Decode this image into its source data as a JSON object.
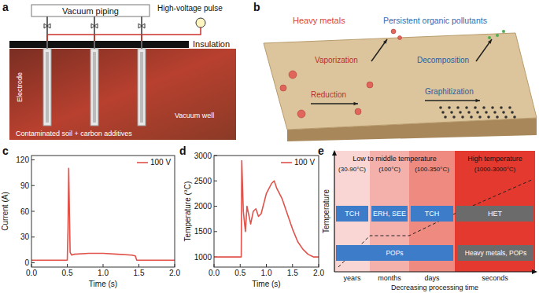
{
  "diagram_a": {
    "letter": "a",
    "vacuum_piping": "Vacuum piping",
    "pulse": "High-voltage pulse",
    "insulation": "Insulation",
    "electrode": "Electrode",
    "vacuum_well": "Vacuum well",
    "soil": "Contaminated soil + carbon additives"
  },
  "diagram_b": {
    "letter": "b",
    "heavy_metals": "Heavy metals",
    "pops": "Persistent organic pollutants",
    "processes": [
      "Vaporization",
      "Reduction",
      "Decomposition",
      "Graphitization"
    ]
  },
  "chart_data": [
    {
      "letter": "c",
      "type": "line",
      "x_label": "Time (s)",
      "y_label": "Current (A)",
      "x": [
        0,
        0.2,
        0.4,
        0.5,
        0.51,
        0.52,
        0.53,
        0.54,
        0.56,
        0.6,
        0.8,
        1.0,
        1.2,
        1.4,
        1.45,
        1.47,
        1.6,
        1.8,
        2.0
      ],
      "series": [
        {
          "name": "100 V",
          "color": "#e0524a",
          "values": [
            3,
            3,
            3,
            3,
            40,
            110,
            60,
            12,
            9,
            10,
            11,
            11,
            10,
            9,
            8,
            3,
            3,
            3,
            3
          ]
        }
      ],
      "xlim": [
        0,
        2
      ],
      "xticks": [
        {
          "value": 0,
          "label": "0.0"
        },
        {
          "value": 0.5,
          "label": "0.5"
        },
        {
          "value": 1,
          "label": "1.0"
        },
        {
          "value": 1.5,
          "label": "1.5"
        },
        {
          "value": 2,
          "label": "2.0"
        }
      ],
      "ylim": [
        -5,
        125
      ],
      "yticks": [
        0,
        30,
        60,
        90,
        120
      ],
      "grid": false,
      "legend": "upper right"
    },
    {
      "letter": "d",
      "type": "line",
      "x_label": "Time (s)",
      "y_label": "Temperature (°C)",
      "x": [
        0,
        0.3,
        0.5,
        0.52,
        0.53,
        0.56,
        0.6,
        0.63,
        0.67,
        0.7,
        0.75,
        0.8,
        0.85,
        0.9,
        1.0,
        1.1,
        1.15,
        1.2,
        1.3,
        1.4,
        1.5,
        1.6,
        1.7,
        1.8,
        1.9,
        2.0
      ],
      "series": [
        {
          "name": "100 V",
          "color": "#e0524a",
          "values": [
            1000,
            1000,
            1000,
            1000,
            2900,
            1900,
            1500,
            2000,
            1800,
            1650,
            1900,
            1950,
            1800,
            1850,
            2250,
            2450,
            2500,
            2350,
            2150,
            1850,
            1550,
            1300,
            1150,
            1050,
            1000,
            1000
          ]
        }
      ],
      "xlim": [
        0,
        2
      ],
      "xticks": [
        {
          "value": 0,
          "label": "0.0"
        },
        {
          "value": 0.5,
          "label": "0.5"
        },
        {
          "value": 1,
          "label": "1.0"
        },
        {
          "value": 1.5,
          "label": "1.5"
        },
        {
          "value": 2,
          "label": "2.0"
        }
      ],
      "ylim": [
        800,
        3000
      ],
      "yticks": [
        1000,
        1500,
        2000,
        2500,
        3000
      ],
      "grid": false,
      "legend": "upper right"
    }
  ],
  "diagram_e": {
    "letter": "e",
    "y_label": "Temperature",
    "x_label": "Decreasing processing time",
    "header": {
      "low": "Low to middle temperature",
      "high": "High temperature"
    },
    "ranges": [
      "(30-90°C)",
      "(100°C)",
      "(100-350°C)",
      "(1000-3000°C)"
    ],
    "times": [
      "years",
      "months",
      "days",
      "seconds"
    ],
    "methods": [
      "TCH",
      "ERH, SEE",
      "TCH",
      "HET"
    ],
    "targets": [
      "POPs",
      "Heavy metals, POPs"
    ]
  }
}
